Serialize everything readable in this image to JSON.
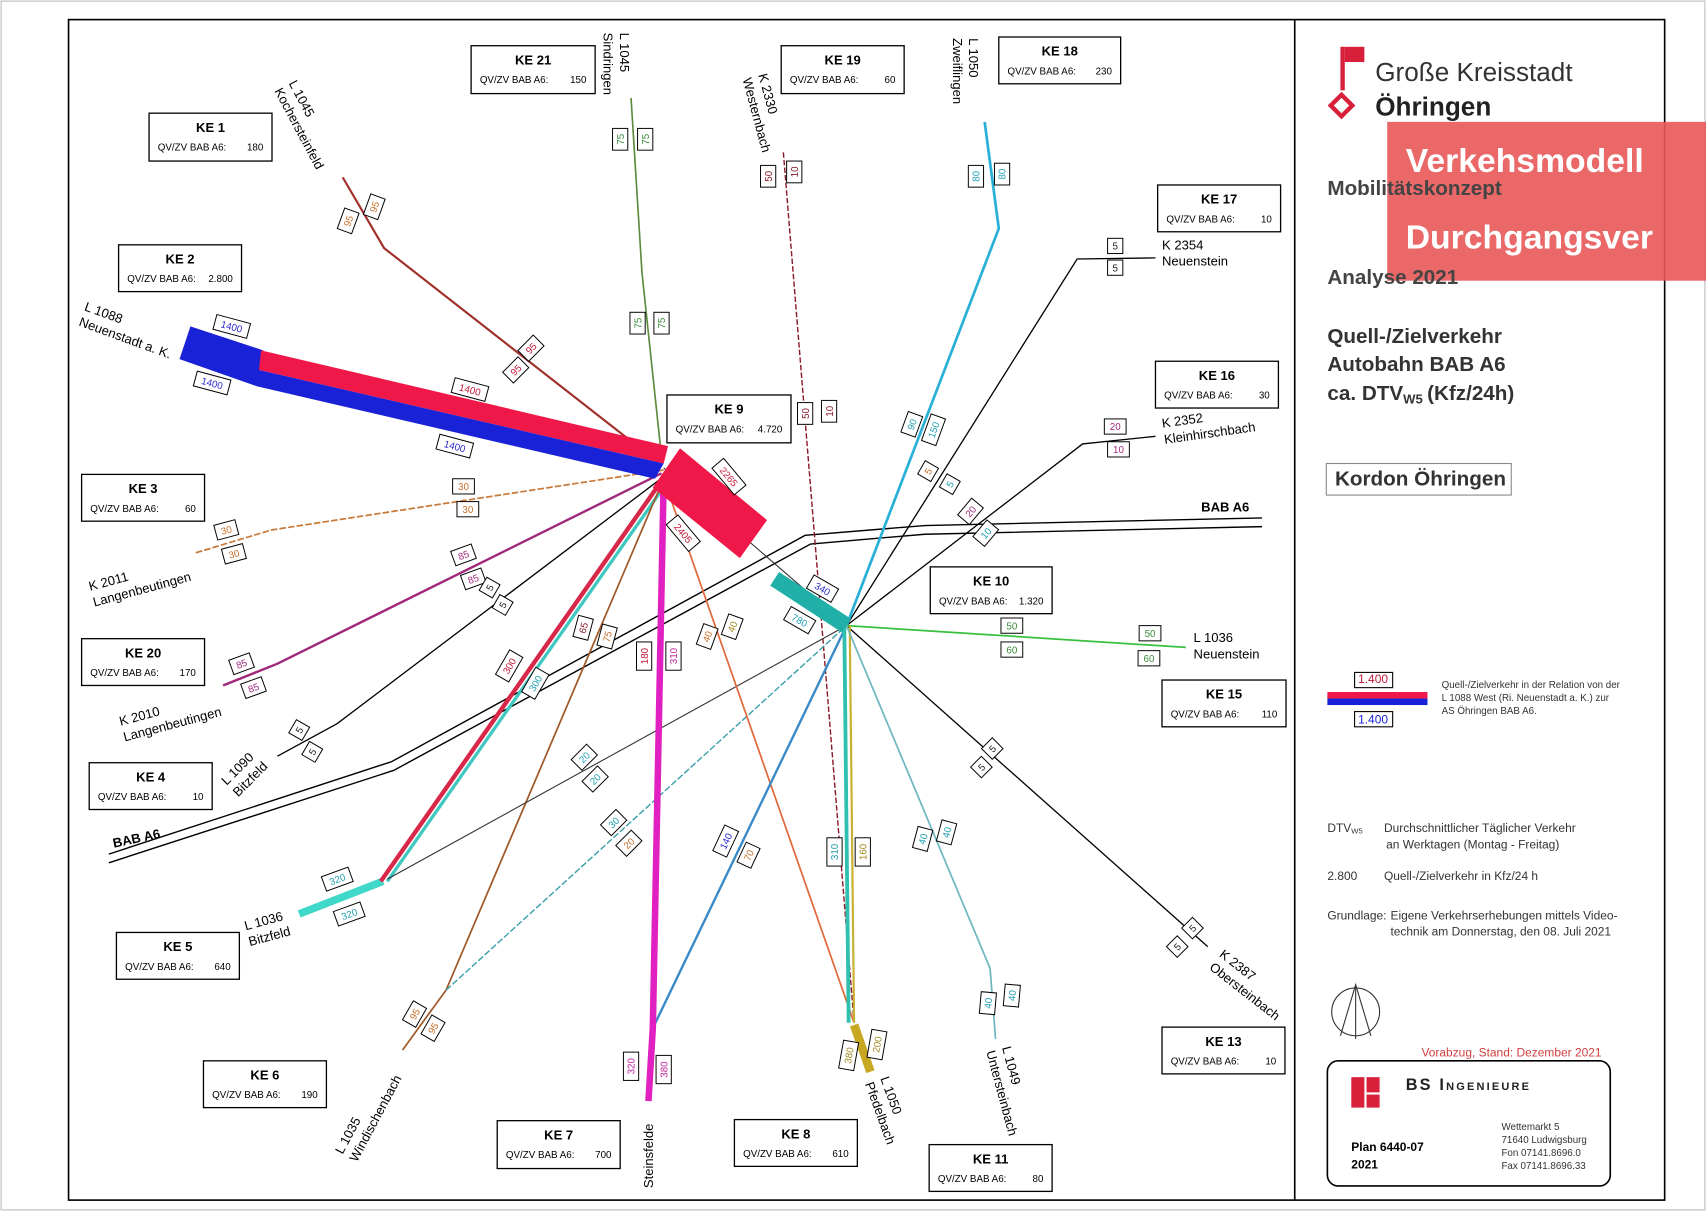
{
  "header": {
    "city_prefix": "Große Kreisstadt",
    "city": "Öhringen",
    "project": "Mobilitätskonzept",
    "analysis": "Analyse 2021",
    "subject": [
      "Quell-/Zielverkehr",
      "Autobahn BAB A6"
    ],
    "unit_prefix": "ca. DTV",
    "unit_sub": "W5",
    "unit_suffix": "(Kfz/24h)",
    "cordon": "Kordon Öhringen"
  },
  "banner": [
    "Verkehsmodell",
    "Durchgangsver"
  ],
  "zones": [
    {
      "name": "KE 21",
      "label": "QV/ZV BAB A6:",
      "value": 150
    },
    {
      "name": "KE 19",
      "label": "QV/ZV BAB A6:",
      "value": 60
    },
    {
      "name": "KE 18",
      "label": "QV/ZV BAB A6:",
      "value": 230
    },
    {
      "name": "KE 1",
      "label": "QV/ZV BAB A6:",
      "value": 180
    },
    {
      "name": "KE 2",
      "label": "QV/ZV BAB A6:",
      "value": "2.800"
    },
    {
      "name": "KE 17",
      "label": "QV/ZV BAB A6:",
      "value": 10
    },
    {
      "name": "KE 9",
      "label": "QV/ZV BAB A6:",
      "value": "4.720"
    },
    {
      "name": "KE 16",
      "label": "QV/ZV BAB A6:",
      "value": 30
    },
    {
      "name": "KE 3",
      "label": "QV/ZV BAB A6:",
      "value": 60
    },
    {
      "name": "KE 10",
      "label": "QV/ZV BAB A6:",
      "value": "1.320"
    },
    {
      "name": "KE 20",
      "label": "QV/ZV BAB A6:",
      "value": 170
    },
    {
      "name": "KE 15",
      "label": "QV/ZV BAB A6:",
      "value": 110
    },
    {
      "name": "KE 4",
      "label": "QV/ZV BAB A6:",
      "value": 10
    },
    {
      "name": "KE 5",
      "label": "QV/ZV BAB A6:",
      "value": 640
    },
    {
      "name": "KE 13",
      "label": "QV/ZV BAB A6:",
      "value": 10
    },
    {
      "name": "KE 6",
      "label": "QV/ZV BAB A6:",
      "value": 190
    },
    {
      "name": "KE 7",
      "label": "QV/ZV BAB A6:",
      "value": 700
    },
    {
      "name": "KE 8",
      "label": "QV/ZV BAB A6:",
      "value": 610
    },
    {
      "name": "KE 11",
      "label": "QV/ZV BAB A6:",
      "value": 80
    }
  ],
  "roads": [
    {
      "number": "L 1045",
      "place": "Kochersteinfeld"
    },
    {
      "number": "L 1045",
      "place": "Sindringen"
    },
    {
      "number": "K 2330",
      "place": "Westernbach"
    },
    {
      "number": "L 1050",
      "place": "Zweiflingen"
    },
    {
      "number": "K 2354",
      "place": "Neuenstein"
    },
    {
      "number": "L 1088",
      "place": "Neuenstadt a. K."
    },
    {
      "number": "K 2352",
      "place": "Kleinhirschbach"
    },
    {
      "number": "K 2011",
      "place": "Langenbeutingen"
    },
    {
      "number": "L 1036",
      "place": "Neuenstein"
    },
    {
      "number": "K 2010",
      "place": "Langenbeutingen"
    },
    {
      "number": "L 1090",
      "place": "Bitzfeld"
    },
    {
      "number": "L 1036",
      "place": "Bitzfeld"
    },
    {
      "number": "K 2387",
      "place": "Obersteinbach"
    },
    {
      "number": "L 1035",
      "place": "Windischenbach"
    },
    {
      "number": "L 1050",
      "place": "Pfedelbach"
    },
    {
      "number": "L 1049",
      "place": "Untersteinbach"
    }
  ],
  "places": [
    "Steinsfelde"
  ],
  "motorway_labels": [
    "BAB A6",
    "BAB A6"
  ],
  "flows": [
    75,
    75,
    75,
    75,
    50,
    10,
    50,
    10,
    80,
    80,
    5,
    5,
    95,
    95,
    95,
    95,
    1400,
    1400,
    1400,
    1400,
    2265,
    2405,
    90,
    150,
    5,
    5,
    20,
    10,
    20,
    10,
    30,
    30,
    30,
    30,
    85,
    85,
    5,
    5,
    85,
    85,
    5,
    5,
    300,
    300,
    65,
    75,
    180,
    310,
    40,
    40,
    340,
    780,
    50,
    60,
    50,
    60,
    5,
    5,
    20,
    20,
    30,
    20,
    140,
    70,
    40,
    40,
    310,
    160,
    320,
    320,
    5,
    5,
    95,
    95,
    40,
    40,
    320,
    380,
    380,
    200
  ],
  "legend": {
    "red_label": "1.400",
    "blue_label": "1.400",
    "text": [
      "Quell-/Zielverkehr in der Relation von der",
      "L 1088 West (Ri. Neuenstadt a. K.) zur",
      "AS Öhringen BAB A6."
    ],
    "dtv": "DTV",
    "dtv_sub": "W5",
    "dtv_text": [
      "Durchschnittlicher Täglicher Verkehr",
      "an Werktagen (Montag - Freitag)"
    ],
    "example": "2.800",
    "example_text": "Quell-/Zielverkehr in Kfz/24 h",
    "basis": "Grundlage:",
    "basis_text": [
      "Eigene Verkehrserhebungen mittels Video-",
      "technik am Donnerstag, den 08. Juli 2021"
    ]
  },
  "footer": {
    "draft": "Vorabzug, Stand: Dezember 2021",
    "company": "BS Ingenieure",
    "address": [
      "Wettemarkt 5",
      "71640 Ludwigsburg",
      "Fon 07141.8696.0",
      "Fax 07141.8696.33"
    ],
    "plan": "Plan 6440-07",
    "year": "2021"
  }
}
